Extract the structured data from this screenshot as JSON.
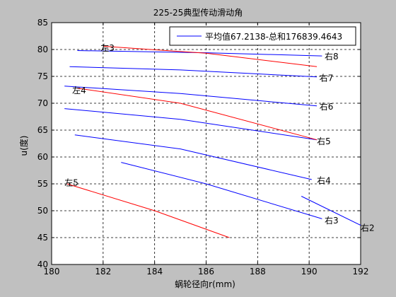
{
  "chart_data": {
    "type": "line",
    "title": "225-25典型传动滑动角",
    "xlabel": "蜗轮径向r(mm)",
    "ylabel": "u(度)",
    "xlim": [
      180,
      192
    ],
    "ylim": [
      40,
      85
    ],
    "xticks": [
      180,
      182,
      184,
      186,
      188,
      190,
      192
    ],
    "yticks": [
      40,
      45,
      50,
      55,
      60,
      65,
      70,
      75,
      80,
      85
    ],
    "grid": true,
    "legend": {
      "position": "top-right",
      "entries": [
        "平均值67.2138-总和176839.4643"
      ]
    },
    "colors": {
      "blue": "#0000ff",
      "red": "#ff0000",
      "background": "#c0c0c0",
      "axes": "#ffffff"
    },
    "series": [
      {
        "color": "blue",
        "label": "右8",
        "x": [
          181.0,
          186.0,
          190.5
        ],
        "y": [
          79.8,
          79.4,
          78.8
        ]
      },
      {
        "color": "blue",
        "label": "右7",
        "x": [
          180.7,
          185.0,
          190.3
        ],
        "y": [
          76.8,
          76.2,
          74.9
        ]
      },
      {
        "color": "blue",
        "label": "右6",
        "x": [
          180.5,
          185.0,
          190.3
        ],
        "y": [
          73.2,
          71.8,
          69.5
        ]
      },
      {
        "color": "blue",
        "label": "右5",
        "x": [
          180.5,
          185.0,
          190.3
        ],
        "y": [
          69.0,
          67.0,
          63.2
        ]
      },
      {
        "color": "blue",
        "label": "右4",
        "x": [
          180.9,
          185.0,
          190.1
        ],
        "y": [
          64.1,
          61.5,
          55.8
        ]
      },
      {
        "color": "blue",
        "label": "右3",
        "x": [
          182.7,
          186.0,
          190.5
        ],
        "y": [
          59.0,
          55.0,
          48.5
        ]
      },
      {
        "color": "blue",
        "label": "右2",
        "x": [
          189.7,
          192.0
        ],
        "y": [
          52.7,
          47.3
        ]
      },
      {
        "color": "red",
        "label": "左3",
        "x": [
          182.0,
          186.0,
          190.3
        ],
        "y": [
          80.6,
          79.3,
          76.8
        ]
      },
      {
        "color": "red",
        "label": "左4",
        "x": [
          181.0,
          185.0,
          190.3
        ],
        "y": [
          72.8,
          70.0,
          63.2
        ]
      },
      {
        "color": "red",
        "label": "左5",
        "x": [
          180.6,
          184.0,
          186.9
        ],
        "y": [
          55.0,
          50.0,
          45.0
        ]
      }
    ],
    "annotations": [
      {
        "text": "左3",
        "x": 181.9,
        "y": 80.4
      },
      {
        "text": "右8",
        "x": 190.6,
        "y": 78.8
      },
      {
        "text": "右7",
        "x": 190.4,
        "y": 74.8
      },
      {
        "text": "左4",
        "x": 180.8,
        "y": 72.5
      },
      {
        "text": "右6",
        "x": 190.4,
        "y": 69.5
      },
      {
        "text": "右5",
        "x": 190.3,
        "y": 63.0
      },
      {
        "text": "右4",
        "x": 190.3,
        "y": 55.7
      },
      {
        "text": "左5",
        "x": 180.5,
        "y": 55.3
      },
      {
        "text": "右3",
        "x": 190.6,
        "y": 48.3
      },
      {
        "text": "右2",
        "x": 192.0,
        "y": 46.9
      }
    ]
  }
}
